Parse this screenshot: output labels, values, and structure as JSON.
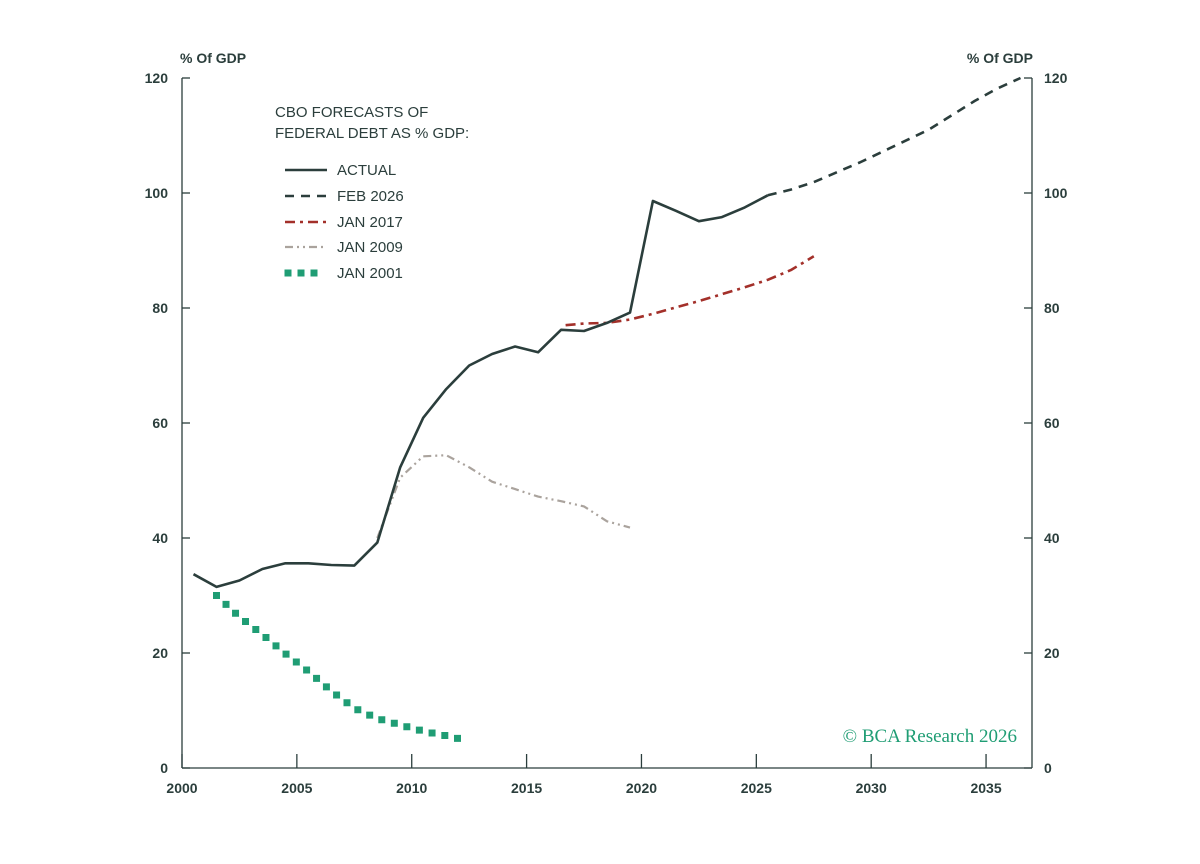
{
  "chart_data": {
    "type": "line",
    "title": "",
    "xlabel": "",
    "ylabel_left": "% Of GDP",
    "ylabel_right": "% Of GDP",
    "xlim": [
      2000,
      2037
    ],
    "ylim": [
      0,
      120
    ],
    "x_ticks": [
      2000,
      2005,
      2010,
      2015,
      2020,
      2025,
      2030,
      2035
    ],
    "x_tick_labels": [
      "2000",
      "2005",
      "2010",
      "2015",
      "2020",
      "2025",
      "2030",
      "2035"
    ],
    "y_ticks": [
      0,
      20,
      40,
      60,
      80,
      100,
      120
    ],
    "y_tick_labels": [
      "0",
      "20",
      "40",
      "60",
      "80",
      "100",
      "120"
    ],
    "grid": false,
    "legend": {
      "placement": "top-left",
      "title_lines": [
        "CBO FORECASTS OF",
        "FEDERAL DEBT AS % GDP:"
      ]
    },
    "credit": "© BCA Research 2026",
    "series": [
      {
        "name": "ACTUAL",
        "color": "#2b3e3c",
        "style": "solid",
        "points": [
          [
            2000.5,
            33.7
          ],
          [
            2001.5,
            31.5
          ],
          [
            2002.5,
            32.6
          ],
          [
            2003.5,
            34.6
          ],
          [
            2004.5,
            35.6
          ],
          [
            2005.5,
            35.6
          ],
          [
            2006.5,
            35.3
          ],
          [
            2007.5,
            35.2
          ],
          [
            2008.5,
            39.2
          ],
          [
            2009.5,
            52.3
          ],
          [
            2010.5,
            60.9
          ],
          [
            2011.5,
            65.9
          ],
          [
            2012.5,
            70.0
          ],
          [
            2013.5,
            72.0
          ],
          [
            2014.5,
            73.3
          ],
          [
            2015.5,
            72.3
          ],
          [
            2016.5,
            76.2
          ],
          [
            2017.5,
            76.0
          ],
          [
            2018.5,
            77.4
          ],
          [
            2019.5,
            79.2
          ],
          [
            2020.5,
            98.6
          ],
          [
            2021.5,
            96.9
          ],
          [
            2022.5,
            95.1
          ],
          [
            2023.5,
            95.8
          ],
          [
            2024.5,
            97.5
          ],
          [
            2025.5,
            99.6
          ]
        ]
      },
      {
        "name": "FEB 2026",
        "color": "#2b3e3c",
        "style": "dashed",
        "points": [
          [
            2025.5,
            99.6
          ],
          [
            2026.5,
            100.6
          ],
          [
            2027.5,
            101.9
          ],
          [
            2028.5,
            103.6
          ],
          [
            2029.5,
            105.3
          ],
          [
            2030.5,
            107.2
          ],
          [
            2031.5,
            109.1
          ],
          [
            2032.5,
            111.0
          ],
          [
            2033.5,
            113.5
          ],
          [
            2034.5,
            116.0
          ],
          [
            2035.5,
            118.2
          ],
          [
            2036.5,
            120.0
          ]
        ]
      },
      {
        "name": "JAN 2017",
        "color": "#a3302a",
        "style": "dash-dot",
        "points": [
          [
            2016.7,
            77.0
          ],
          [
            2017.5,
            77.3
          ],
          [
            2018.5,
            77.4
          ],
          [
            2019.5,
            78.0
          ],
          [
            2020.5,
            79.0
          ],
          [
            2021.5,
            80.1
          ],
          [
            2022.5,
            81.2
          ],
          [
            2023.5,
            82.4
          ],
          [
            2024.5,
            83.6
          ],
          [
            2025.5,
            84.9
          ],
          [
            2026.5,
            86.6
          ],
          [
            2027.5,
            89.0
          ]
        ]
      },
      {
        "name": "JAN 2009",
        "color": "#aaa39d",
        "style": "dash-dot-dot",
        "points": [
          [
            2008.5,
            40.0
          ],
          [
            2009.5,
            50.5
          ],
          [
            2010.5,
            54.2
          ],
          [
            2011.5,
            54.4
          ],
          [
            2012.5,
            52.3
          ],
          [
            2013.5,
            49.8
          ],
          [
            2014.5,
            48.5
          ],
          [
            2015.5,
            47.2
          ],
          [
            2016.5,
            46.4
          ],
          [
            2017.5,
            45.5
          ],
          [
            2018.5,
            42.9
          ],
          [
            2019.5,
            41.8
          ]
        ]
      },
      {
        "name": "JAN 2001",
        "color": "#1f9d74",
        "style": "dotted",
        "points": [
          [
            2001.5,
            30.0
          ],
          [
            2002.5,
            26.3
          ],
          [
            2003.5,
            23.2
          ],
          [
            2004.5,
            19.9
          ],
          [
            2005.5,
            16.8
          ],
          [
            2006.5,
            13.4
          ],
          [
            2007.5,
            10.4
          ],
          [
            2008.5,
            8.6
          ],
          [
            2009.5,
            7.5
          ],
          [
            2010.5,
            6.4
          ],
          [
            2011.5,
            5.6
          ],
          [
            2012.5,
            4.7
          ]
        ]
      }
    ]
  }
}
